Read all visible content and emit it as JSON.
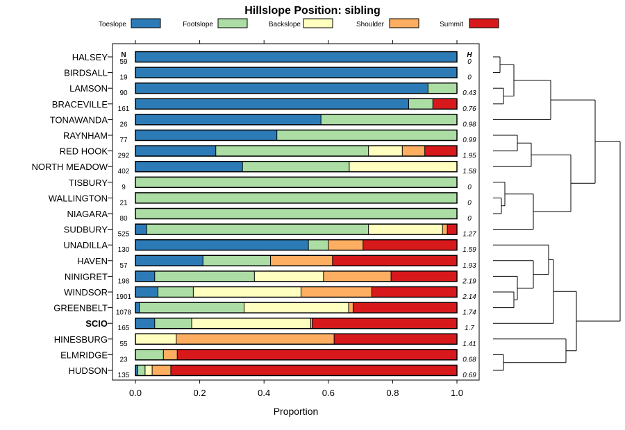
{
  "chart_data": {
    "type": "bar",
    "stacked": true,
    "orientation": "horizontal",
    "title": "Hillslope Position: sibling",
    "xlabel": "Proportion",
    "xlim": [
      0,
      1
    ],
    "x_ticks": [
      "0.0",
      "0.2",
      "0.4",
      "0.6",
      "0.8",
      "1.0"
    ],
    "x_tick_values": [
      0,
      0.2,
      0.4,
      0.6,
      0.8,
      1.0
    ],
    "n_header": "N",
    "h_header": "H",
    "highlight_category": "SCIO",
    "legend_position": "top",
    "series": [
      {
        "name": "Toeslope",
        "color": "#2c7bb6"
      },
      {
        "name": "Footslope",
        "color": "#abdda4"
      },
      {
        "name": "Backslope",
        "color": "#ffffbf"
      },
      {
        "name": "Shoulder",
        "color": "#fdae61"
      },
      {
        "name": "Summit",
        "color": "#d7191c"
      }
    ],
    "categories": [
      {
        "name": "HALSEY",
        "n": "59",
        "h": "0",
        "values": [
          1.0,
          0,
          0,
          0,
          0
        ]
      },
      {
        "name": "BIRDSALL",
        "n": "19",
        "h": "0",
        "values": [
          1.0,
          0,
          0,
          0,
          0
        ]
      },
      {
        "name": "LAMSON",
        "n": "90",
        "h": "0.43",
        "values": [
          0.91,
          0.09,
          0,
          0,
          0
        ]
      },
      {
        "name": "BRACEVILLE",
        "n": "161",
        "h": "0.76",
        "values": [
          0.85,
          0.075,
          0,
          0,
          0.075
        ]
      },
      {
        "name": "TONAWANDA",
        "n": "26",
        "h": "0.98",
        "values": [
          0.577,
          0.423,
          0,
          0,
          0
        ]
      },
      {
        "name": "RAYNHAM",
        "n": "77",
        "h": "0.99",
        "values": [
          0.44,
          0.56,
          0,
          0,
          0
        ]
      },
      {
        "name": "RED HOOK",
        "n": "292",
        "h": "1.95",
        "values": [
          0.25,
          0.475,
          0.105,
          0.07,
          0.1
        ]
      },
      {
        "name": "NORTH MEADOW",
        "n": "402",
        "h": "1.58",
        "values": [
          0.333,
          0.332,
          0.335,
          0,
          0
        ]
      },
      {
        "name": "TISBURY",
        "n": "9",
        "h": "0",
        "values": [
          0,
          1.0,
          0,
          0,
          0
        ]
      },
      {
        "name": "WALLINGTON",
        "n": "21",
        "h": "0",
        "values": [
          0,
          1.0,
          0,
          0,
          0
        ]
      },
      {
        "name": "NIAGARA",
        "n": "80",
        "h": "0",
        "values": [
          0,
          1.0,
          0,
          0,
          0
        ]
      },
      {
        "name": "SUDBURY",
        "n": "525",
        "h": "1.27",
        "values": [
          0.035,
          0.69,
          0.23,
          0.015,
          0.03
        ]
      },
      {
        "name": "UNADILLA",
        "n": "130",
        "h": "1.59",
        "values": [
          0.538,
          0.062,
          0,
          0.108,
          0.292
        ]
      },
      {
        "name": "HAVEN",
        "n": "57",
        "h": "1.93",
        "values": [
          0.21,
          0.21,
          0,
          0.193,
          0.387
        ]
      },
      {
        "name": "NINIGRET",
        "n": "198",
        "h": "2.19",
        "values": [
          0.06,
          0.31,
          0.215,
          0.21,
          0.205
        ]
      },
      {
        "name": "WINDSOR",
        "n": "1901",
        "h": "2.14",
        "values": [
          0.07,
          0.11,
          0.335,
          0.22,
          0.265
        ]
      },
      {
        "name": "GREENBELT",
        "n": "1078",
        "h": "1.74",
        "values": [
          0.012,
          0.326,
          0.325,
          0.014,
          0.323
        ]
      },
      {
        "name": "SCIO",
        "n": "165",
        "h": "1.7",
        "values": [
          0.06,
          0.115,
          0.37,
          0.005,
          0.45
        ]
      },
      {
        "name": "HINESBURG",
        "n": "55",
        "h": "1.41",
        "values": [
          0,
          0,
          0.127,
          0.491,
          0.382
        ]
      },
      {
        "name": "ELMRIDGE",
        "n": "23",
        "h": "0.68",
        "values": [
          0,
          0.087,
          0,
          0.043,
          0.87
        ]
      },
      {
        "name": "HUDSON",
        "n": "135",
        "h": "0.69",
        "values": [
          0.007,
          0.023,
          0.022,
          0.058,
          0.89
        ]
      }
    ]
  }
}
